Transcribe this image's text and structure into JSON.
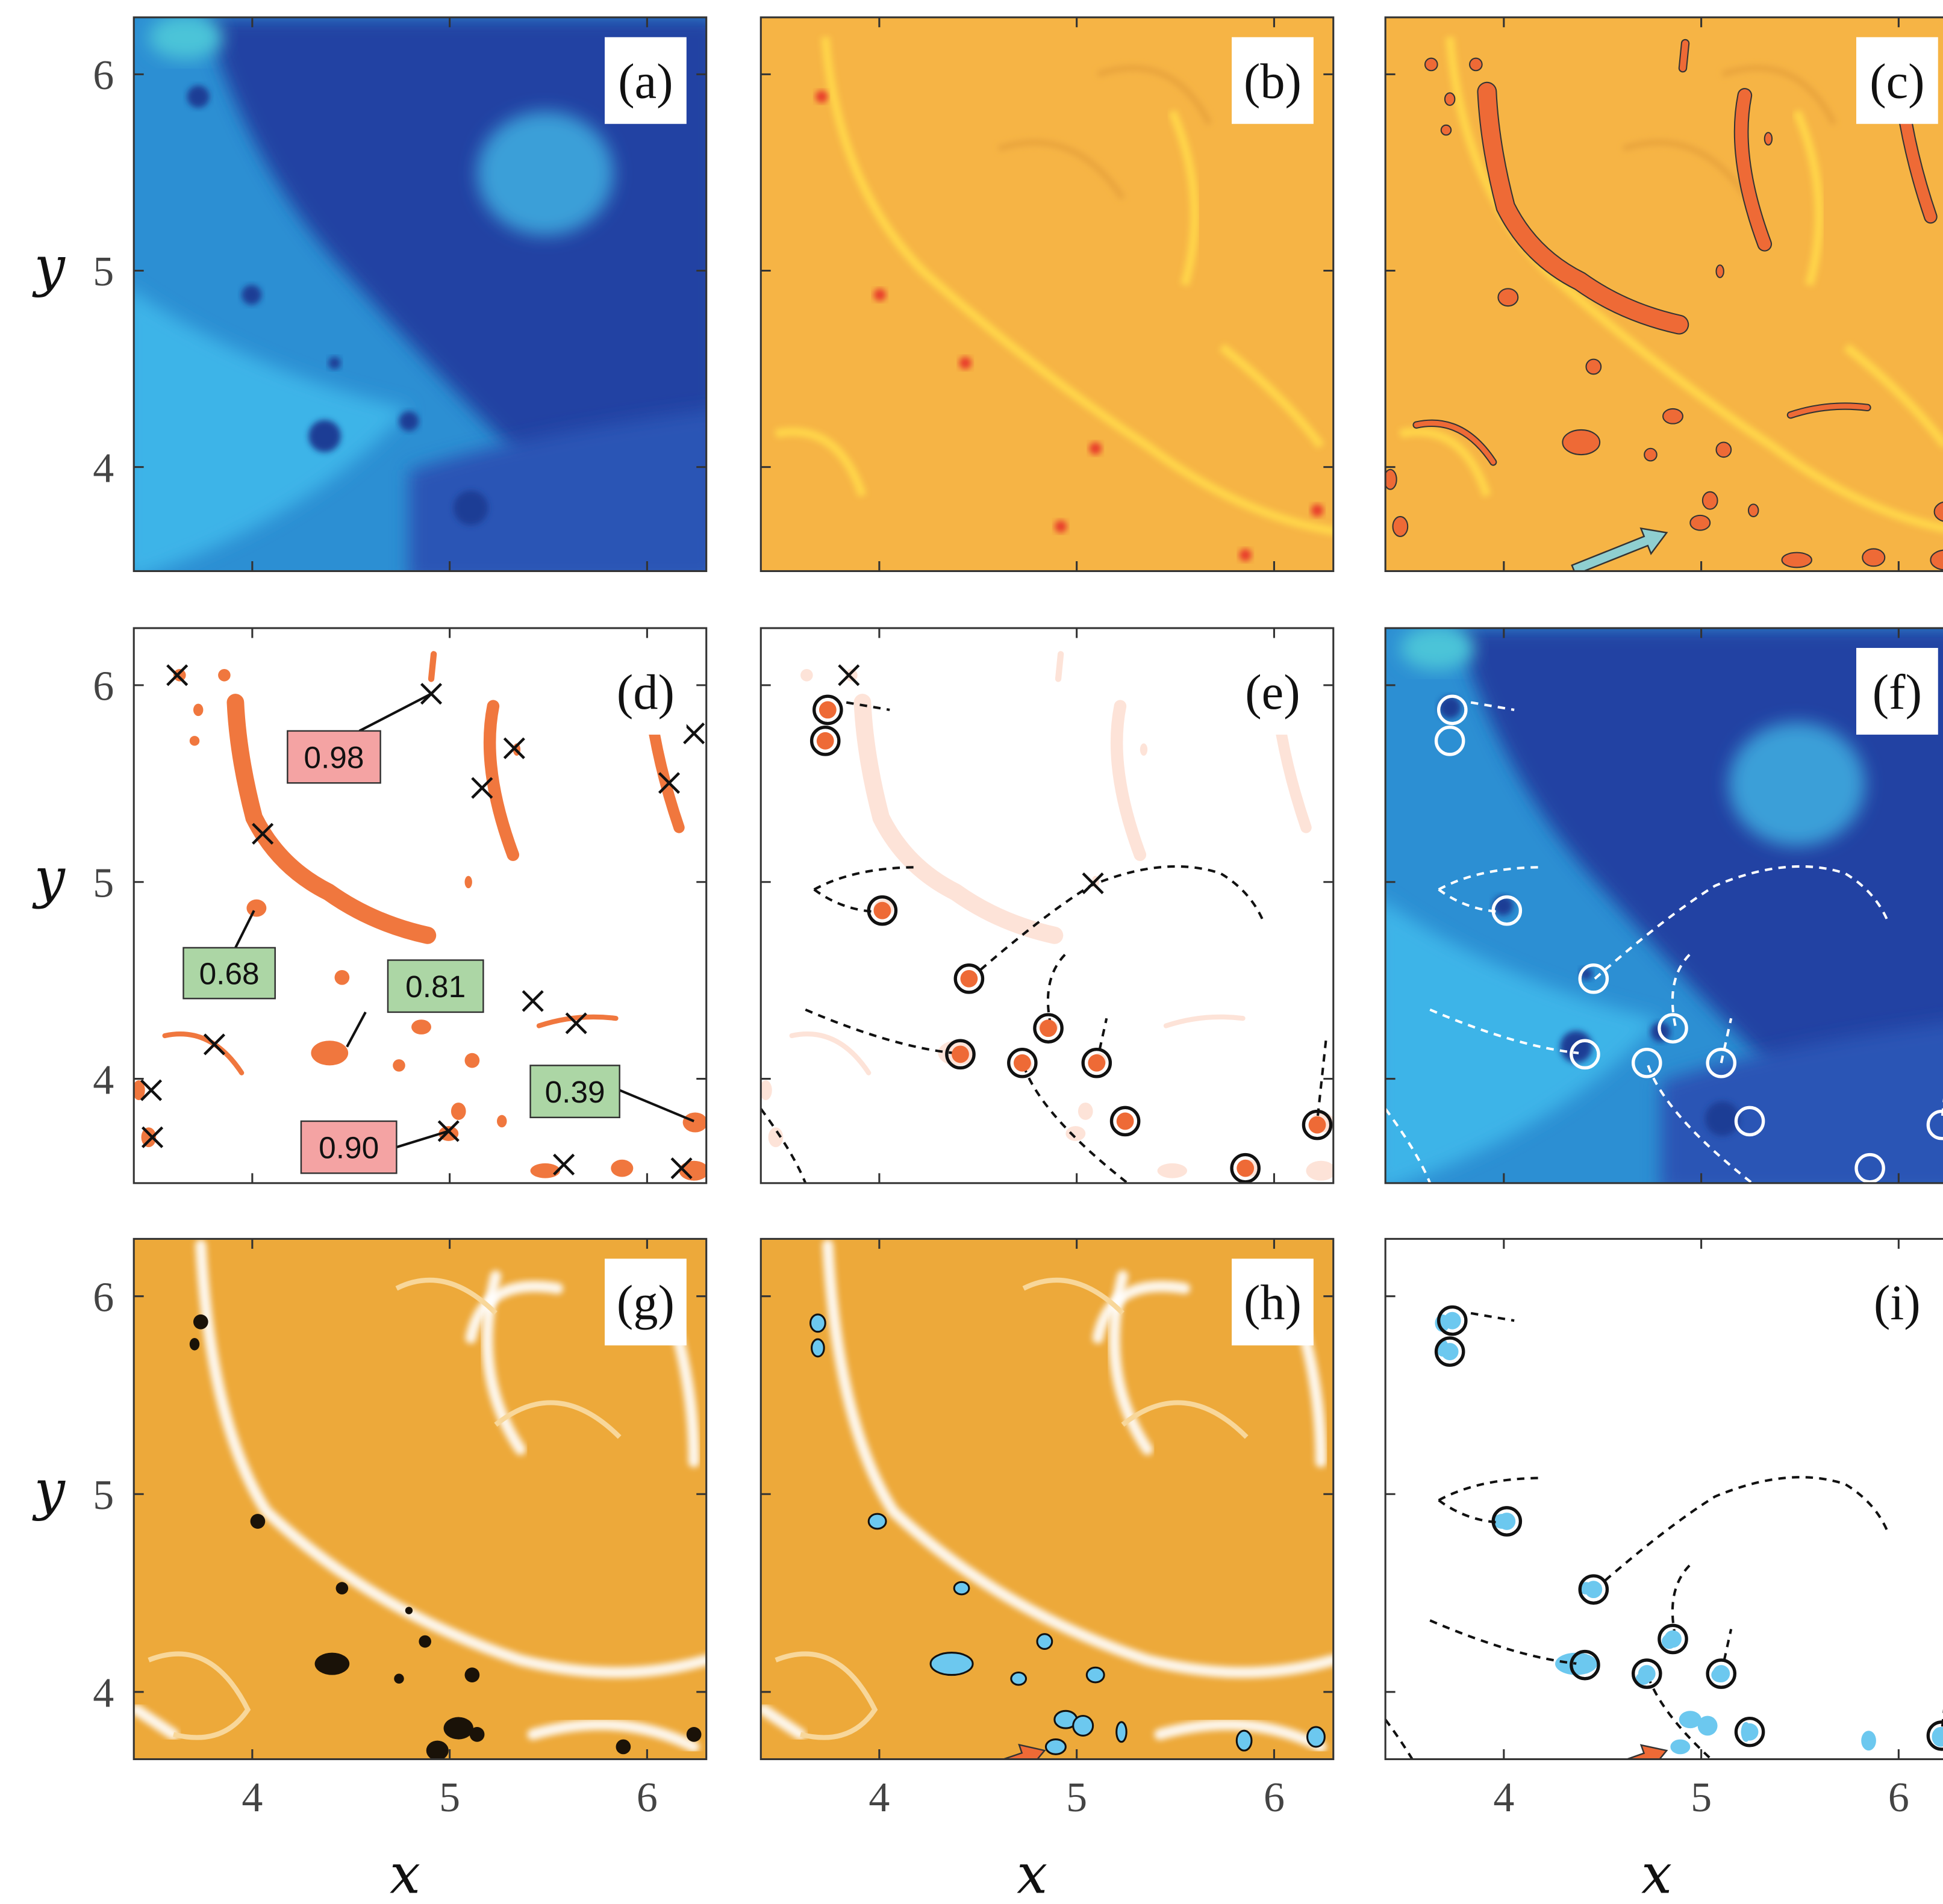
{
  "figure": {
    "xlabel": "x",
    "ylabel": "y",
    "xlim": [
      3.4,
      6.3
    ],
    "xticks": [
      4,
      5,
      6
    ],
    "yticks": [
      4,
      5,
      6
    ],
    "row_ylim": [
      [
        3.47,
        6.29
      ],
      [
        3.47,
        6.29
      ],
      [
        3.66,
        6.29
      ]
    ],
    "panels": [
      "(a)",
      "(b)",
      "(c)",
      "(d)",
      "(e)",
      "(f)",
      "(g)",
      "(h)",
      "(i)"
    ],
    "scores": [
      {
        "text": "0.98",
        "color": "#f4a3a3"
      },
      {
        "text": "0.68",
        "color": "#acd6a5"
      },
      {
        "text": "0.81",
        "color": "#acd6a5"
      },
      {
        "text": "0.39",
        "color": "#acd6a5"
      },
      {
        "text": "0.90",
        "color": "#f4a3a3"
      }
    ]
  }
}
